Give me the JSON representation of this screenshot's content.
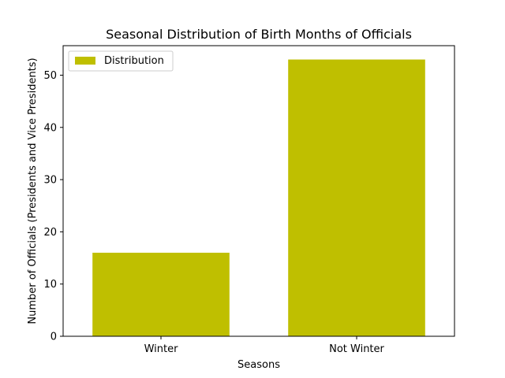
{
  "chart_data": {
    "type": "bar",
    "title": "Seasonal Distribution of Birth Months of Officials",
    "xlabel": "Seasons",
    "ylabel": "Number of Officials (Presidents and Vice Presidents)",
    "categories": [
      "Winter",
      "Not Winter"
    ],
    "series": [
      {
        "name": "Distribution",
        "values": [
          16,
          53
        ],
        "color": "#bfbf00"
      }
    ],
    "ylim": [
      0,
      55.65
    ],
    "yticks": [
      "0",
      "10",
      "20",
      "30",
      "40",
      "50"
    ],
    "grid": false,
    "legend": "top-left"
  }
}
